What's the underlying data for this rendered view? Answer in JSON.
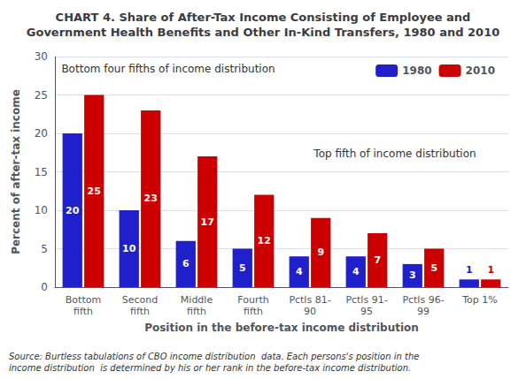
{
  "chart_data": {
    "type": "bar",
    "title": "CHART 4. Share of After-Tax Income Consisting of Employee and\nGovernment Health Benefits and Other In-Kind Transfers, 1980 and 2010",
    "xlabel": "Position in the before-tax income distribution",
    "ylabel": "Percent of after-tax income",
    "categories": [
      "Bottom\nfifth",
      "Second\nfifth",
      "Middle\nfifth",
      "Fourth\nfifth",
      "Pctls 81-\n90",
      "Pctls 91-\n95",
      "Pctls 96-\n99",
      "Top 1%"
    ],
    "series": [
      {
        "name": "1980",
        "color": "#1F1FCC",
        "values": [
          20,
          10,
          6,
          5,
          4,
          4,
          3,
          1
        ]
      },
      {
        "name": "2010",
        "color": "#CC0000",
        "values": [
          25,
          23,
          17,
          12,
          9,
          7,
          5,
          1
        ]
      }
    ],
    "ylim": [
      0,
      30
    ],
    "yticks": [
      0,
      5,
      10,
      15,
      20,
      25,
      30
    ],
    "grid": true,
    "legend": "upper right",
    "data_labels": true,
    "annotations": [
      "Bottom four fifths of income distribution",
      "Top fifth of income distribution"
    ],
    "source": "Source: Burtless tabulations of CBO income distribution  data. Each persons's position in the\nincome distribution  is determined by his or her rank in the before-tax income distribution."
  }
}
